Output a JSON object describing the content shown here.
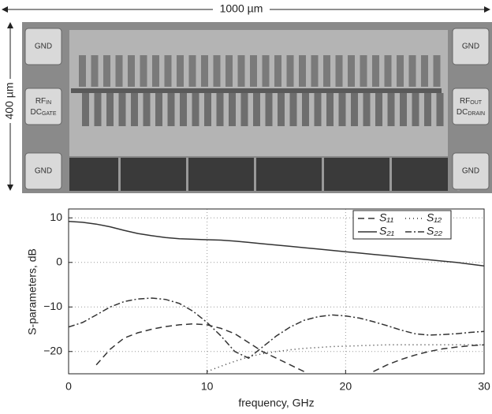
{
  "photo": {
    "width_label": "1000 µm",
    "height_label": "400 µm",
    "pads": {
      "gnd_top_left": "GND",
      "gnd_top_right": "GND",
      "gnd_bottom_left": "GND",
      "gnd_bottom_right": "GND",
      "rf_in": {
        "main": "RF",
        "sub": "IN"
      },
      "dc_gate": {
        "main": "DC",
        "sub": "GATE"
      },
      "rf_out": {
        "main": "RF",
        "sub": "OUT"
      },
      "dc_drain": {
        "main": "DC",
        "sub": "DRAIN"
      }
    }
  },
  "chart_data": {
    "type": "line",
    "x_label": "frequency, GHz",
    "y_label": "S-parameters, dB",
    "x": [
      0,
      1,
      2,
      3,
      4,
      5,
      6,
      7,
      8,
      9,
      10,
      11,
      12,
      13,
      14,
      15,
      16,
      17,
      18,
      19,
      20,
      21,
      22,
      23,
      24,
      25,
      26,
      27,
      28,
      29,
      30
    ],
    "series": [
      {
        "name": "S₁₁",
        "color": "#333333",
        "dash": "8 5",
        "values": [
          null,
          null,
          -23,
          -19.5,
          -17,
          -15.8,
          -15,
          -14.4,
          -14,
          -13.8,
          -14,
          -14.8,
          -16,
          -18,
          -20,
          -21.5,
          -23,
          -24.5,
          null,
          null,
          null,
          null,
          -24.5,
          -23,
          -21.8,
          -20.8,
          -20,
          -19.4,
          -19,
          -18.7,
          -18.5
        ]
      },
      {
        "name": "S₁₂",
        "color": "#333333",
        "dash": "1 4",
        "values": [
          null,
          null,
          null,
          null,
          null,
          null,
          null,
          null,
          null,
          null,
          -24.5,
          -23.3,
          -22.2,
          -21.2,
          -20.5,
          -20,
          -19.6,
          -19.3,
          -19.1,
          -18.9,
          -18.8,
          -18.7,
          -18.6,
          -18.5,
          -18.5,
          -18.5,
          -18.5,
          -18.5,
          -18.5,
          -18.5,
          -18.5
        ]
      },
      {
        "name": "S₂₁",
        "color": "#333333",
        "dash": "none",
        "values": [
          9.2,
          9.0,
          8.6,
          8.0,
          7.2,
          6.5,
          6.0,
          5.6,
          5.3,
          5.2,
          5.1,
          5.0,
          4.8,
          4.5,
          4.2,
          3.9,
          3.6,
          3.3,
          3.0,
          2.7,
          2.4,
          2.1,
          1.8,
          1.5,
          1.2,
          0.9,
          0.6,
          0.3,
          0.0,
          -0.4,
          -0.8
        ]
      },
      {
        "name": "S₂₂",
        "color": "#333333",
        "dash": "8 3 2 3",
        "values": [
          -14.5,
          -13.5,
          -11.8,
          -10,
          -8.8,
          -8.2,
          -8,
          -8.3,
          -9.2,
          -11,
          -13.5,
          -16.5,
          -20,
          -21.5,
          -19,
          -16.5,
          -14.5,
          -13,
          -12.2,
          -11.8,
          -12,
          -12.5,
          -13.3,
          -14.2,
          -15.2,
          -16,
          -16.3,
          -16.2,
          -16,
          -15.7,
          -15.5
        ]
      }
    ],
    "xlim": [
      0,
      30
    ],
    "xticks": [
      0,
      10,
      20,
      30
    ],
    "ylim": [
      -25,
      12
    ],
    "yticks": [
      {
        "value": -20,
        "label": "−20"
      },
      {
        "value": -10,
        "label": "−10"
      },
      0,
      10
    ],
    "grid": true,
    "legend": "top-right"
  }
}
